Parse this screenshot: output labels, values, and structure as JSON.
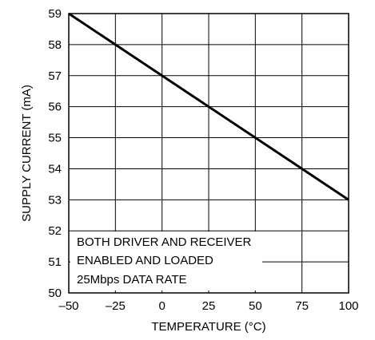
{
  "chart_data": {
    "type": "line",
    "title": "",
    "xlabel": "TEMPERATURE (°C)",
    "ylabel": "SUPPLY CURRENT (mA)",
    "xlim": [
      -50,
      100
    ],
    "ylim": [
      50,
      59
    ],
    "x_ticks": [
      -50,
      -25,
      0,
      25,
      50,
      75,
      100
    ],
    "x_tick_labels": [
      "–50",
      "–25",
      "0",
      "25",
      "50",
      "75",
      "100"
    ],
    "y_ticks": [
      50,
      51,
      52,
      53,
      54,
      55,
      56,
      57,
      58,
      59
    ],
    "y_tick_labels": [
      "50",
      "51",
      "52",
      "53",
      "54",
      "55",
      "56",
      "57",
      "58",
      "59"
    ],
    "grid": true,
    "series": [
      {
        "x": [
          -50,
          100
        ],
        "y": [
          59,
          53
        ]
      }
    ],
    "annotation": {
      "lines": [
        "BOTH DRIVER AND RECEIVER",
        "ENABLED AND LOADED",
        "25Mbps DATA RATE"
      ]
    }
  }
}
